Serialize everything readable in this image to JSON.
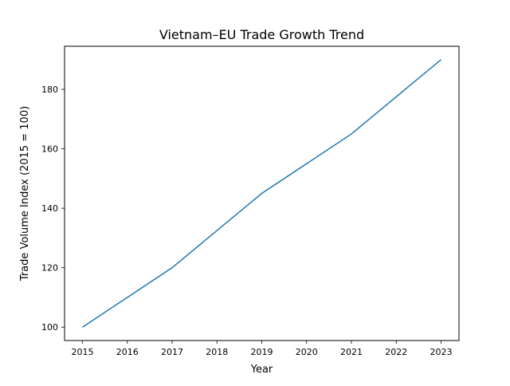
{
  "chart_data": {
    "type": "line",
    "title": "Vietnam–EU Trade Growth Trend",
    "xlabel": "Year",
    "ylabel": "Trade Volume Index (2015 = 100)",
    "x": [
      2015,
      2016,
      2017,
      2018,
      2019,
      2020,
      2021,
      2022,
      2023
    ],
    "series": [
      {
        "values": [
          100,
          110,
          120,
          132.5,
          145,
          155,
          165,
          177.5,
          190
        ],
        "color": "#1f77b4"
      }
    ],
    "xlim": [
      2014.6,
      2023.4
    ],
    "ylim": [
      95.5,
      194.5
    ],
    "xticks": [
      "2015",
      "2016",
      "2017",
      "2018",
      "2019",
      "2020",
      "2021",
      "2022",
      "2023"
    ],
    "yticks": [
      "100",
      "120",
      "140",
      "160",
      "180"
    ],
    "grid": false,
    "legend": "none"
  }
}
